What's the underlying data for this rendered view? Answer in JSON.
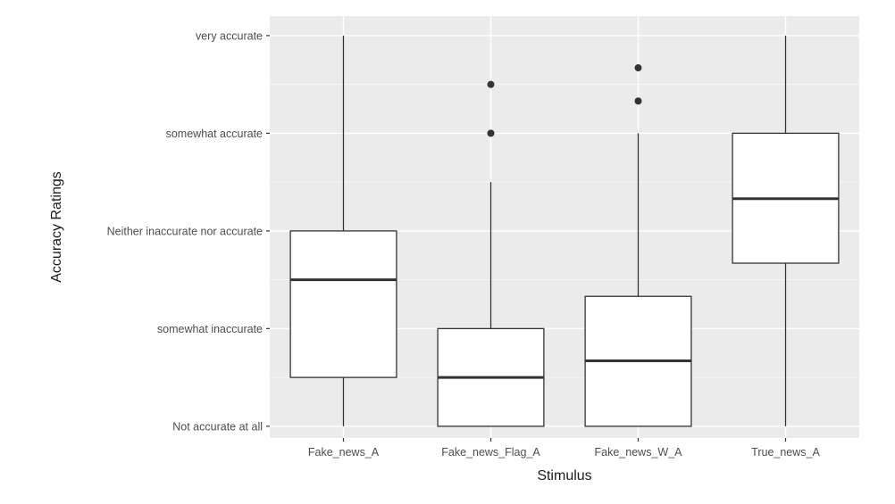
{
  "chart_data": {
    "type": "boxplot",
    "xlabel": "Stimulus",
    "ylabel": "Accuracy Ratings",
    "y_levels": [
      "Not accurate at all",
      "somewhat inaccurate",
      "Neither inaccurate nor accurate",
      "somewhat accurate",
      "very accurate"
    ],
    "y_values": [
      1,
      2,
      3,
      4,
      5
    ],
    "ylim": [
      0.88,
      5.2
    ],
    "categories": [
      "Fake_news_A",
      "Fake_news_Flag_A",
      "Fake_news_W_A",
      "True_news_A"
    ],
    "boxes": [
      {
        "category": "Fake_news_A",
        "whisker_low": 1,
        "q1": 1.5,
        "median": 2.5,
        "q3": 3,
        "whisker_high": 5,
        "outliers": []
      },
      {
        "category": "Fake_news_Flag_A",
        "whisker_low": 1,
        "q1": 1,
        "median": 1.5,
        "q3": 2,
        "whisker_high": 3.5,
        "outliers": [
          4,
          4.5
        ]
      },
      {
        "category": "Fake_news_W_A",
        "whisker_low": 1,
        "q1": 1,
        "median": 1.67,
        "q3": 2.33,
        "whisker_high": 4,
        "outliers": [
          4.33,
          4.67
        ]
      },
      {
        "category": "True_news_A",
        "whisker_low": 1,
        "q1": 2.67,
        "median": 3.33,
        "q3": 4,
        "whisker_high": 5,
        "outliers": []
      }
    ],
    "grid": true,
    "colors": {
      "panel": "#ebebeb",
      "grid_major": "#ffffff",
      "box_fill": "#ffffff",
      "box_line": "#333333"
    }
  }
}
